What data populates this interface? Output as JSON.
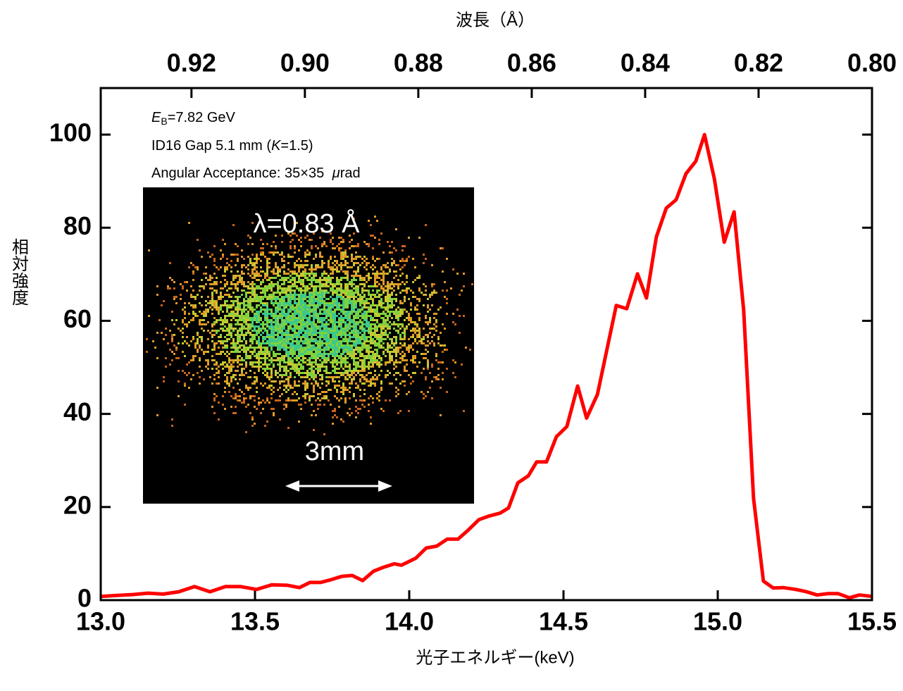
{
  "chart_data": {
    "type": "line",
    "x_label": "光子エネルギー(keV)",
    "x2_label": "波長（Å）",
    "y_label": "相対強度",
    "xlim": [
      13.0,
      15.5
    ],
    "xticks": [
      {
        "value": 13.0,
        "label": "13.0"
      },
      13.5,
      {
        "value": 14.0,
        "label": "14.0"
      },
      14.5,
      {
        "value": 15.0,
        "label": "15.0"
      },
      15.5
    ],
    "x2lim": [
      0.936,
      0.8
    ],
    "x2ticks": [
      0.92,
      {
        "value": 0.9,
        "label": "0.90"
      },
      0.88,
      0.86,
      0.84,
      0.82,
      {
        "value": 0.8,
        "label": "0.80"
      }
    ],
    "ylim": [
      0,
      110
    ],
    "yticks": [
      0,
      20,
      40,
      60,
      80,
      100
    ],
    "annotations": [
      [
        "E",
        "B",
        "=7.82 GeV"
      ],
      [
        "ID16 Gap 5.1 mm (",
        "K",
        "=1.5)"
      ],
      [
        "Angular Acceptance: 35×35 ",
        "μ",
        "rad"
      ]
    ],
    "inset": {
      "label": "λ=0.83 Å",
      "scale_label": "3mm"
    },
    "series": [
      {
        "color": "#ff0000",
        "x": [
          13.0,
          13.05,
          13.103,
          13.153,
          13.203,
          13.253,
          13.304,
          13.354,
          13.404,
          13.454,
          13.505,
          13.555,
          13.605,
          13.644,
          13.678,
          13.712,
          13.747,
          13.781,
          13.815,
          13.849,
          13.884,
          13.918,
          13.952,
          13.975,
          14.021,
          14.055,
          14.089,
          14.123,
          14.158,
          14.192,
          14.226,
          14.26,
          14.295,
          14.322,
          14.352,
          14.386,
          14.413,
          14.445,
          14.477,
          14.511,
          14.546,
          14.575,
          14.61,
          14.671,
          14.705,
          14.74,
          14.769,
          14.801,
          14.833,
          14.865,
          14.897,
          14.929,
          14.957,
          14.989,
          15.021,
          15.053,
          15.084,
          15.116,
          15.148,
          15.18,
          15.212,
          15.253,
          15.288,
          15.322,
          15.358,
          15.39,
          15.427,
          15.459,
          15.5
        ],
        "values": [
          0.8,
          1.0,
          1.2,
          1.5,
          1.3,
          1.8,
          2.9,
          1.8,
          2.9,
          2.9,
          2.3,
          3.3,
          3.2,
          2.7,
          3.8,
          3.8,
          4.4,
          5.1,
          5.3,
          4.2,
          6.2,
          7.1,
          7.8,
          7.5,
          9.0,
          11.2,
          11.6,
          13.1,
          13.1,
          15.1,
          17.3,
          18.1,
          18.7,
          19.8,
          25.2,
          26.7,
          29.7,
          29.7,
          35.1,
          37.3,
          46.0,
          39.1,
          44.2,
          63.3,
          62.6,
          70.1,
          64.9,
          78.0,
          84.2,
          86.0,
          91.6,
          94.3,
          100,
          90.5,
          76.9,
          83.4,
          62.3,
          21.9,
          4.1,
          2.6,
          2.7,
          2.3,
          1.8,
          1.1,
          1.4,
          1.4,
          0.5,
          1.1,
          0.8
        ]
      }
    ]
  }
}
